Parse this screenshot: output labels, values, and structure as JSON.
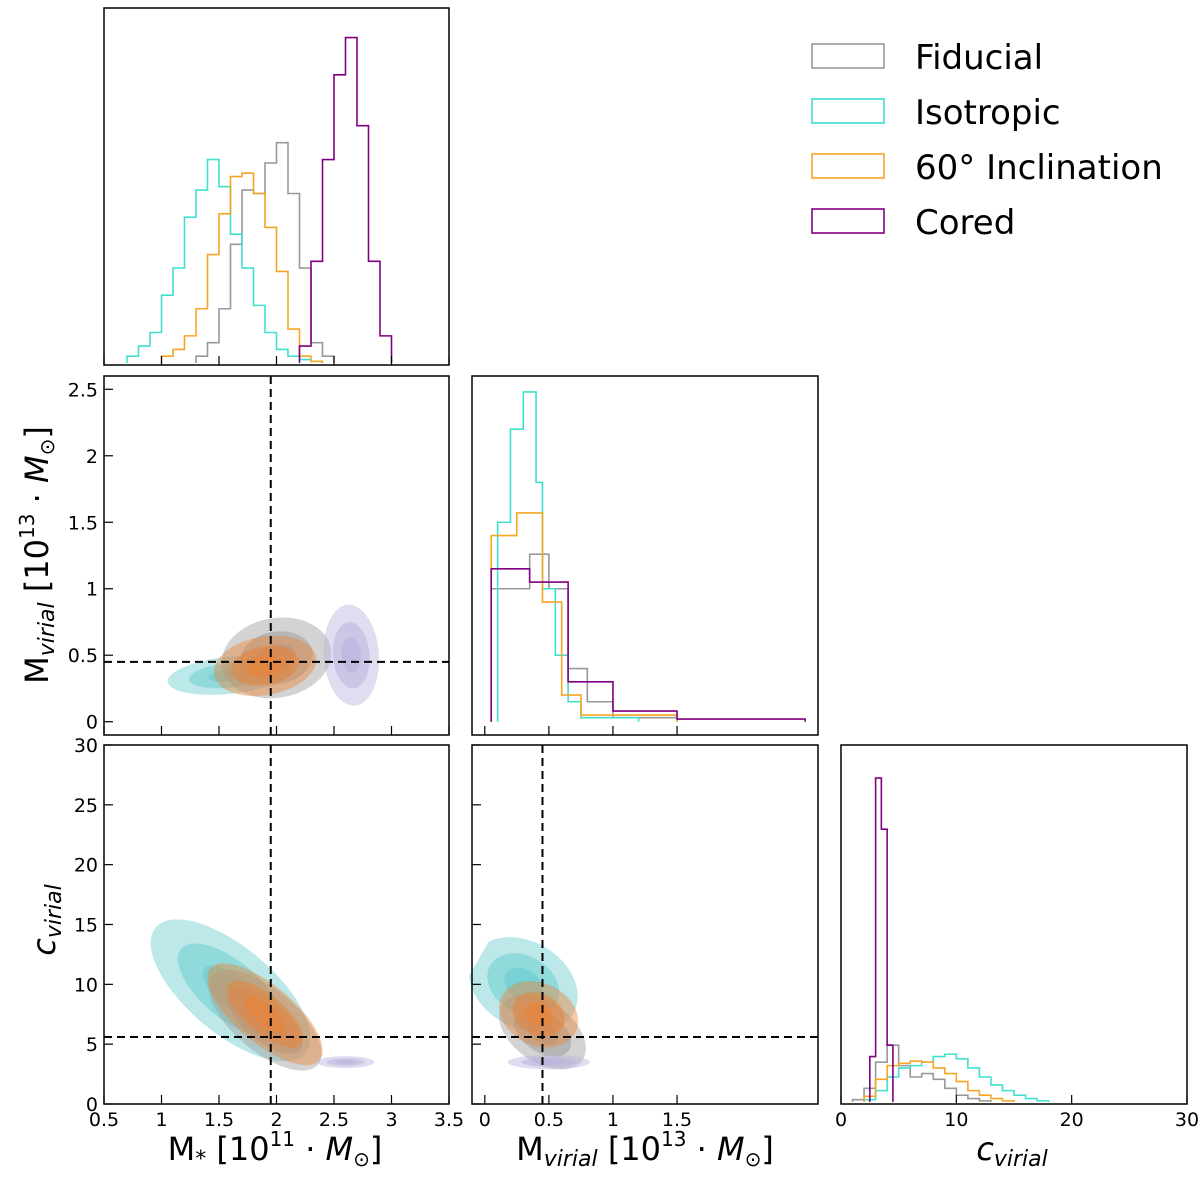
{
  "chart_data": {
    "type": "corner",
    "parameters": [
      "M_star",
      "M_virial",
      "c_virial"
    ],
    "axis_labels": {
      "m_star_x": "M* [10^11 · M⊙]",
      "m_vir_x": "Mvirial [10^13 · M⊙]",
      "c_vir_x": "cvirial",
      "m_vir_y": "Mvirial [10^13 · M⊙]",
      "c_vir_y": "cvirial"
    },
    "ranges": {
      "m_star": [
        0.5,
        3.5
      ],
      "m_vir": [
        -0.1,
        2.6
      ],
      "c_vir": [
        0,
        30
      ]
    },
    "ticks": {
      "m_star": [
        "0.5",
        "1",
        "1.5",
        "2",
        "2.5",
        "3",
        "3.5"
      ],
      "m_vir_x": [
        "0",
        "0.5",
        "1",
        "1.5"
      ],
      "m_vir_y": [
        "0",
        "0.5",
        "1",
        "1.5",
        "2",
        "2.5"
      ],
      "c_vir": [
        "0",
        "5",
        "10",
        "15",
        "20",
        "25",
        "30"
      ],
      "c_vir_x": [
        "0",
        "10",
        "20",
        "30"
      ]
    },
    "truth": {
      "m_star": 1.95,
      "m_vir": 0.45,
      "c_vir": 5.6
    },
    "legend": {
      "position": "top-right",
      "entries": [
        "Fiducial",
        "Isotropic",
        "60° Inclination",
        "Cored"
      ]
    },
    "series": [
      {
        "name": "Fiducial",
        "color": "#999999",
        "fill": "#9e9e9e",
        "m_star_hist": {
          "edges": [
            1.3,
            1.4,
            1.5,
            1.6,
            1.7,
            1.8,
            1.9,
            2.0,
            2.1,
            2.2,
            2.3,
            2.4,
            2.5
          ],
          "counts": [
            0.02,
            0.06,
            0.16,
            0.35,
            0.51,
            0.5,
            0.59,
            0.65,
            0.5,
            0.28,
            0.06,
            0.02
          ]
        },
        "m_vir_hist": {
          "edges": [
            0.05,
            0.35,
            0.5,
            0.65,
            0.8,
            1.0,
            1.5
          ],
          "counts": [
            1.0,
            1.26,
            1.0,
            0.4,
            0.15,
            0.03
          ]
        },
        "c_vir_hist": {
          "edges": [
            1,
            2,
            3,
            4,
            5,
            6,
            7,
            8,
            9,
            10,
            11,
            12,
            13
          ],
          "counts": [
            0.02,
            0.12,
            0.35,
            0.5,
            0.32,
            0.22,
            0.25,
            0.2,
            0.12,
            0.06,
            0.03,
            0.01
          ]
        },
        "mstar_mvir_center": [
          2.0,
          0.48
        ],
        "mstar_cvir_center": [
          1.9,
          7.0
        ],
        "mvir_cvir_center": [
          0.45,
          6.0
        ]
      },
      {
        "name": "Isotropic",
        "color": "#40e0d0",
        "fill": "#6ccdd0",
        "m_star_hist": {
          "edges": [
            0.7,
            0.8,
            0.9,
            1.0,
            1.1,
            1.2,
            1.3,
            1.4,
            1.5,
            1.6,
            1.7,
            1.8,
            1.9,
            2.0,
            2.1,
            2.2,
            2.3,
            2.4
          ],
          "counts": [
            0.02,
            0.05,
            0.09,
            0.2,
            0.28,
            0.43,
            0.51,
            0.6,
            0.52,
            0.38,
            0.28,
            0.17,
            0.09,
            0.04,
            0.02,
            0.01,
            0.005
          ]
        },
        "m_vir_hist": {
          "edges": [
            0.1,
            0.2,
            0.3,
            0.4,
            0.45,
            0.55,
            0.65,
            0.75,
            1.2
          ],
          "counts": [
            1.5,
            2.2,
            2.48,
            1.8,
            1.0,
            0.5,
            0.15,
            0.03
          ]
        },
        "c_vir_hist": {
          "edges": [
            2,
            3,
            4,
            5,
            6,
            7,
            8,
            9,
            10,
            11,
            12,
            13,
            14,
            15,
            16,
            17,
            18
          ],
          "counts": [
            0.02,
            0.1,
            0.22,
            0.3,
            0.32,
            0.35,
            0.4,
            0.42,
            0.38,
            0.3,
            0.22,
            0.15,
            0.1,
            0.06,
            0.03,
            0.01
          ]
        },
        "mstar_mvir_center": [
          1.6,
          0.35
        ],
        "mstar_cvir_center": [
          1.6,
          9.5
        ],
        "mvir_cvir_center": [
          0.3,
          10.0
        ]
      },
      {
        "name": "60° Inclination",
        "color": "#f5a623",
        "fill": "#e8843a",
        "m_star_hist": {
          "edges": [
            1.0,
            1.1,
            1.2,
            1.3,
            1.4,
            1.5,
            1.6,
            1.7,
            1.8,
            1.9,
            2.0,
            2.1,
            2.2,
            2.3,
            2.4
          ],
          "counts": [
            0.02,
            0.04,
            0.08,
            0.16,
            0.32,
            0.44,
            0.55,
            0.56,
            0.5,
            0.4,
            0.27,
            0.1,
            0.02,
            0.005
          ]
        },
        "m_vir_hist": {
          "edges": [
            0.05,
            0.25,
            0.45,
            0.6,
            0.75,
            1.5
          ],
          "counts": [
            1.4,
            1.57,
            0.9,
            0.2,
            0.05
          ]
        },
        "c_vir_hist": {
          "edges": [
            2,
            3,
            4,
            5,
            6,
            7,
            8,
            9,
            10,
            11,
            12,
            13,
            14,
            15
          ],
          "counts": [
            0.05,
            0.2,
            0.32,
            0.34,
            0.36,
            0.35,
            0.3,
            0.25,
            0.18,
            0.1,
            0.06,
            0.03,
            0.01
          ]
        },
        "mstar_mvir_center": [
          1.9,
          0.42
        ],
        "mstar_cvir_center": [
          1.9,
          7.5
        ],
        "mvir_cvir_center": [
          0.42,
          7.5
        ]
      },
      {
        "name": "Cored",
        "color": "#800080",
        "fill": "#b9b3dd",
        "m_star_hist": {
          "edges": [
            2.2,
            2.3,
            2.4,
            2.5,
            2.6,
            2.7,
            2.8,
            2.9,
            3.0
          ],
          "counts": [
            0.05,
            0.3,
            0.6,
            0.85,
            0.96,
            0.7,
            0.3,
            0.08
          ]
        },
        "m_vir_hist": {
          "edges": [
            0.05,
            0.35,
            0.65,
            1.0,
            1.5,
            2.5
          ],
          "counts": [
            1.15,
            1.05,
            0.3,
            0.08,
            0.02
          ]
        },
        "c_vir_hist": {
          "edges": [
            2.5,
            3.0,
            3.5,
            4.0,
            4.5
          ],
          "counts": [
            0.4,
            2.85,
            2.4,
            0.5
          ]
        },
        "mstar_mvir_center": [
          2.65,
          0.5
        ],
        "mstar_cvir_center": [
          2.6,
          3.5
        ],
        "mvir_cvir_center": [
          0.5,
          3.5
        ]
      }
    ]
  }
}
